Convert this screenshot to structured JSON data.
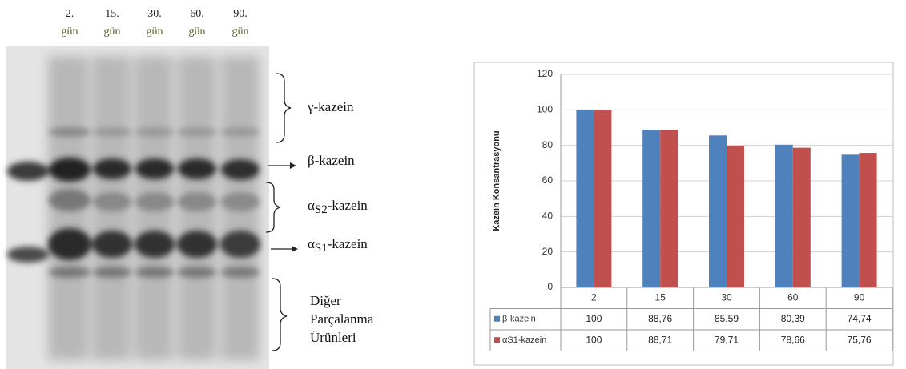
{
  "gel": {
    "lanes": [
      {
        "day": "2.",
        "unit": "gün"
      },
      {
        "day": "15.",
        "unit": "gün"
      },
      {
        "day": "30.",
        "unit": "gün"
      },
      {
        "day": "60.",
        "unit": "gün"
      },
      {
        "day": "90.",
        "unit": "gün"
      }
    ],
    "bands": [
      "γ-kazein",
      "β-kazein",
      {
        "prefix": "α",
        "sub": "S2",
        "suffix": "-kazein"
      },
      {
        "prefix": "α",
        "sub": "S1",
        "suffix": "-kazein"
      },
      [
        "Diğer",
        "Parçalanma",
        "Ürünleri"
      ]
    ]
  },
  "chart_data": {
    "type": "bar",
    "ylabel": "Kazein Konsantrasyonu",
    "categories": [
      "2",
      "15",
      "30",
      "60",
      "90"
    ],
    "series": [
      {
        "name": "β-kazein",
        "color": "#4f81bd",
        "values": [
          100,
          88.76,
          85.59,
          80.39,
          74.74
        ],
        "value_labels": [
          "100",
          "88,76",
          "85,59",
          "80,39",
          "74,74"
        ]
      },
      {
        "name": "αS1-kazein",
        "color": "#c0504d",
        "values": [
          100,
          88.71,
          79.71,
          78.66,
          75.76
        ],
        "value_labels": [
          "100",
          "88,71",
          "79,71",
          "78,66",
          "75,76"
        ]
      }
    ],
    "ylim": [
      0,
      120
    ],
    "yticks": [
      0,
      20,
      40,
      60,
      80,
      100,
      120
    ],
    "grid": true
  }
}
